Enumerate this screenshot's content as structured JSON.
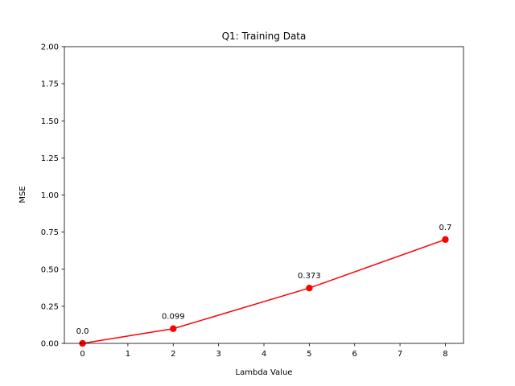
{
  "chart_data": {
    "type": "line",
    "title": "Q1: Training Data",
    "xlabel": "Lambda Value",
    "ylabel": "MSE",
    "xlim": [
      -0.4,
      8.4
    ],
    "ylim": [
      0,
      2.0
    ],
    "x_ticks": [
      "0",
      "1",
      "2",
      "3",
      "4",
      "5",
      "6",
      "7",
      "8"
    ],
    "y_ticks": [
      "0.00",
      "0.25",
      "0.50",
      "0.75",
      "1.00",
      "1.25",
      "1.50",
      "1.75",
      "2.00"
    ],
    "grid": false,
    "series": [
      {
        "color": "#ff0000",
        "x": [
          0,
          2,
          5,
          8
        ],
        "y": [
          0.0,
          0.099,
          0.373,
          0.7
        ],
        "labels": [
          "0.0",
          "0.099",
          "0.373",
          "0.7"
        ]
      }
    ]
  }
}
